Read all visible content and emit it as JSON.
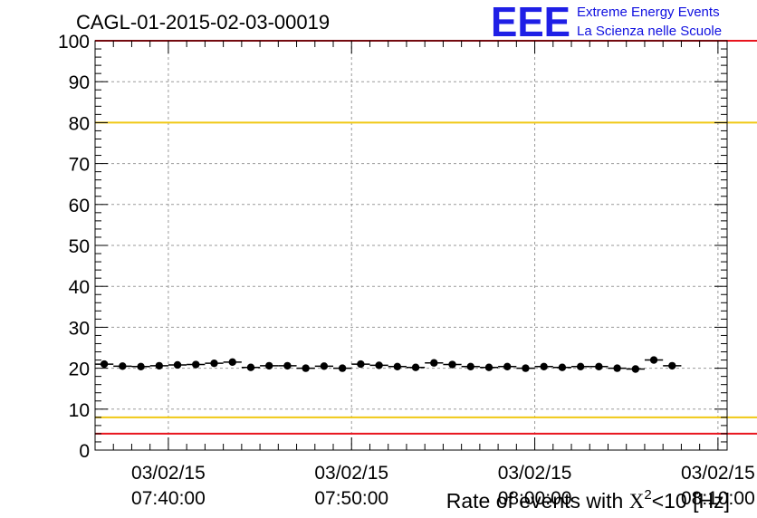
{
  "chart_data": {
    "type": "scatter",
    "title": "CAGL-01-2015-02-03-00019",
    "xlabel": {
      "prefix": "Rate of events with ",
      "symbol": "X",
      "superscript": "2",
      "suffix": "<10 [Hz]"
    },
    "ylabel": "",
    "ylim": [
      0,
      100
    ],
    "yticks": [
      "0",
      "10",
      "20",
      "30",
      "40",
      "50",
      "60",
      "70",
      "80",
      "90",
      "100"
    ],
    "xlim": [
      "2015-02-03 07:36:00",
      "2015-02-03 08:10:30"
    ],
    "xticks": [
      {
        "time": "2015-02-03 07:40:00",
        "date": "03/02/15",
        "clock": "07:40:00"
      },
      {
        "time": "2015-02-03 07:50:00",
        "date": "03/02/15",
        "clock": "07:50:00"
      },
      {
        "time": "2015-02-03 08:00:00",
        "date": "03/02/15",
        "clock": "08:00:00"
      },
      {
        "time": "2015-02-03 08:10:00",
        "date": "03/02/15",
        "clock": "08:10:00"
      }
    ],
    "grid": true,
    "reference_lines": [
      {
        "value": 100,
        "color": "#e8141e"
      },
      {
        "value": 80,
        "color": "#f0c814"
      },
      {
        "value": 8,
        "color": "#f0c814"
      },
      {
        "value": 4,
        "color": "#e8141e"
      }
    ],
    "series": [
      {
        "color": "#000000",
        "x_error_minutes": 0.5,
        "points": [
          {
            "x": "2015-02-03 07:36:30",
            "y": 21.0
          },
          {
            "x": "2015-02-03 07:37:30",
            "y": 20.5
          },
          {
            "x": "2015-02-03 07:38:30",
            "y": 20.4
          },
          {
            "x": "2015-02-03 07:39:30",
            "y": 20.6
          },
          {
            "x": "2015-02-03 07:40:30",
            "y": 20.8
          },
          {
            "x": "2015-02-03 07:41:30",
            "y": 20.9
          },
          {
            "x": "2015-02-03 07:42:30",
            "y": 21.2
          },
          {
            "x": "2015-02-03 07:43:30",
            "y": 21.5
          },
          {
            "x": "2015-02-03 07:44:30",
            "y": 20.2
          },
          {
            "x": "2015-02-03 07:45:30",
            "y": 20.6
          },
          {
            "x": "2015-02-03 07:46:30",
            "y": 20.6
          },
          {
            "x": "2015-02-03 07:47:30",
            "y": 20.0
          },
          {
            "x": "2015-02-03 07:48:30",
            "y": 20.5
          },
          {
            "x": "2015-02-03 07:49:30",
            "y": 20.0
          },
          {
            "x": "2015-02-03 07:50:30",
            "y": 21.0
          },
          {
            "x": "2015-02-03 07:51:30",
            "y": 20.7
          },
          {
            "x": "2015-02-03 07:52:30",
            "y": 20.4
          },
          {
            "x": "2015-02-03 07:53:30",
            "y": 20.2
          },
          {
            "x": "2015-02-03 07:54:30",
            "y": 21.3
          },
          {
            "x": "2015-02-03 07:55:30",
            "y": 20.9
          },
          {
            "x": "2015-02-03 07:56:30",
            "y": 20.4
          },
          {
            "x": "2015-02-03 07:57:30",
            "y": 20.2
          },
          {
            "x": "2015-02-03 07:58:30",
            "y": 20.4
          },
          {
            "x": "2015-02-03 07:59:30",
            "y": 20.0
          },
          {
            "x": "2015-02-03 08:00:30",
            "y": 20.4
          },
          {
            "x": "2015-02-03 08:01:30",
            "y": 20.2
          },
          {
            "x": "2015-02-03 08:02:30",
            "y": 20.4
          },
          {
            "x": "2015-02-03 08:03:30",
            "y": 20.4
          },
          {
            "x": "2015-02-03 08:04:30",
            "y": 20.0
          },
          {
            "x": "2015-02-03 08:05:30",
            "y": 19.8
          },
          {
            "x": "2015-02-03 08:06:30",
            "y": 22.0
          },
          {
            "x": "2015-02-03 08:07:30",
            "y": 20.6
          }
        ]
      }
    ]
  },
  "logo": {
    "mark": "EEE",
    "line1": "Extreme Energy Events",
    "line2": "La Scienza nelle Scuole"
  }
}
